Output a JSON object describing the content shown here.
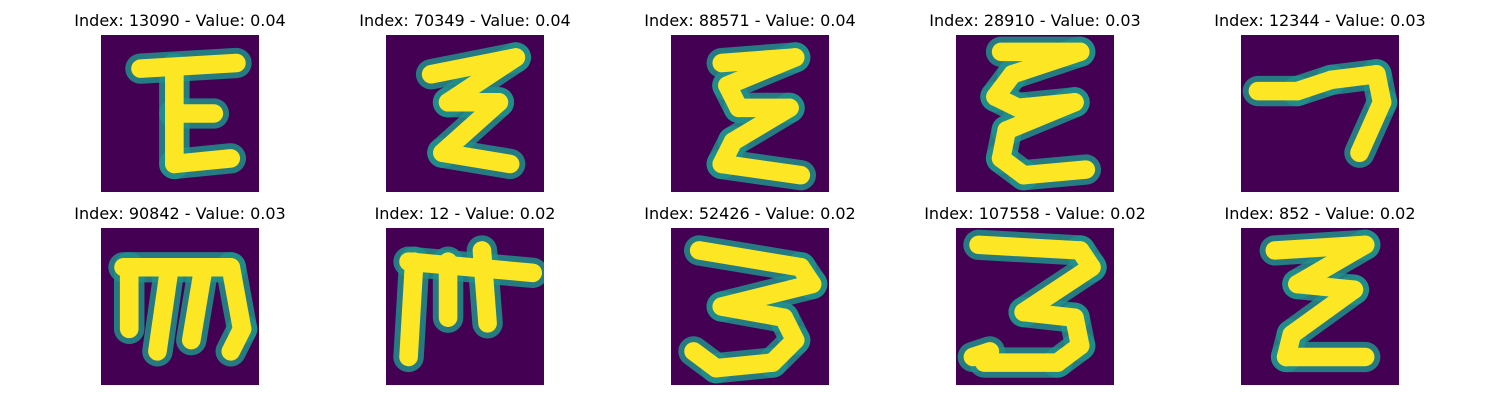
{
  "colors": {
    "background": "#440154",
    "stroke": "#fde725",
    "edge": "#21918c"
  },
  "panels": [
    {
      "title": "Index: 13090 - Value: 0.04",
      "index": 13090,
      "value": 0.04,
      "glyph": [
        "M7 6 L24 5",
        "M13 6 L13 23",
        "M13 14 L20 14",
        "M13 23 L23 22"
      ]
    },
    {
      "title": "Index: 70349 - Value: 0.04",
      "index": 70349,
      "value": 0.04,
      "glyph": [
        "M8 7 L23 4",
        "M23 4 L11 12",
        "M11 12 L20 12",
        "M20 12 L10 21",
        "M10 21 L22 23"
      ]
    },
    {
      "title": "Index: 88571 - Value: 0.04",
      "index": 88571,
      "value": 0.04,
      "glyph": [
        "M9 5 L22 4",
        "M22 4 L10 9",
        "M10 9 L12 13",
        "M12 13 L21 13",
        "M21 13 L11 19",
        "M11 19 L9 23",
        "M9 23 L23 25"
      ]
    },
    {
      "title": "Index: 28910 - Value: 0.03",
      "index": 28910,
      "value": 0.03,
      "glyph": [
        "M8 3 L22 3",
        "M22 3 L10 7",
        "M10 7 L7 11",
        "M7 11 L11 13",
        "M11 13 L21 12",
        "M21 12 L9 17",
        "M9 17 L8 22",
        "M8 22 L12 25",
        "M12 25 L23 24"
      ]
    },
    {
      "title": "Index: 12344 - Value: 0.03",
      "index": 12344,
      "value": 0.03,
      "glyph": [
        "M3 10 L10 10",
        "M10 10 L16 8",
        "M16 8 L24 7",
        "M24 7 L25 12",
        "M25 12 L21 21"
      ]
    },
    {
      "title": "Index: 90842 - Value: 0.03",
      "index": 90842,
      "value": 0.03,
      "glyph": [
        "M4 7 L23 7",
        "M23 7 L25 18",
        "M25 18 L23 22",
        "M5 7 L5 18",
        "M12 8 L10 22",
        "M18 8 L16 20"
      ]
    },
    {
      "title": "Index: 12 - Value: 0.02",
      "index": 12,
      "value": 0.02,
      "glyph": [
        "M4 6 L26 8",
        "M5 6 L4 23",
        "M11 6 L11 16",
        "M17 4 L18 17"
      ]
    },
    {
      "title": "Index: 52426 - Value: 0.02",
      "index": 52426,
      "value": 0.02,
      "glyph": [
        "M5 4 L23 7",
        "M23 7 L25 10",
        "M25 10 L9 14",
        "M9 14 L20 16",
        "M20 16 L22 20",
        "M22 20 L18 24",
        "M18 24 L8 25",
        "M8 25 L4 22"
      ]
    },
    {
      "title": "Index: 107558 - Value: 0.02",
      "index": 107558,
      "value": 0.02,
      "glyph": [
        "M4 3 L22 4",
        "M22 4 L24 7",
        "M24 7 L12 15",
        "M12 15 L21 16",
        "M21 16 L22 21",
        "M22 21 L18 24",
        "M18 24 L5 24",
        "M3 23 L6 22"
      ]
    },
    {
      "title": "Index: 852 - Value: 0.02",
      "index": 852,
      "value": 0.02,
      "glyph": [
        "M6 4 L22 3",
        "M22 3 L10 10",
        "M10 10 L20 11",
        "M20 11 L9 19",
        "M9 19 L8 23",
        "M8 23 L22 23"
      ]
    }
  ]
}
